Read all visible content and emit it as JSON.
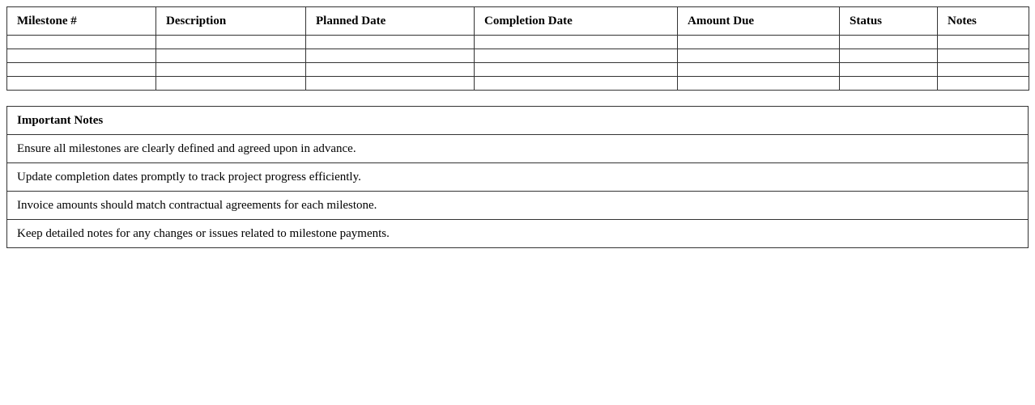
{
  "milestones": {
    "headers": [
      "Milestone #",
      "Description",
      "Planned Date",
      "Completion Date",
      "Amount Due",
      "Status",
      "Notes"
    ],
    "rows": [
      [
        "",
        "",
        "",
        "",
        "",
        "",
        ""
      ],
      [
        "",
        "",
        "",
        "",
        "",
        "",
        ""
      ],
      [
        "",
        "",
        "",
        "",
        "",
        "",
        ""
      ],
      [
        "",
        "",
        "",
        "",
        "",
        "",
        ""
      ]
    ]
  },
  "notes": {
    "title": "Important Notes",
    "items": [
      "Ensure all milestones are clearly defined and agreed upon in advance.",
      "Update completion dates promptly to track project progress efficiently.",
      "Invoice amounts should match contractual agreements for each milestone.",
      "Keep detailed notes for any changes or issues related to milestone payments."
    ]
  }
}
